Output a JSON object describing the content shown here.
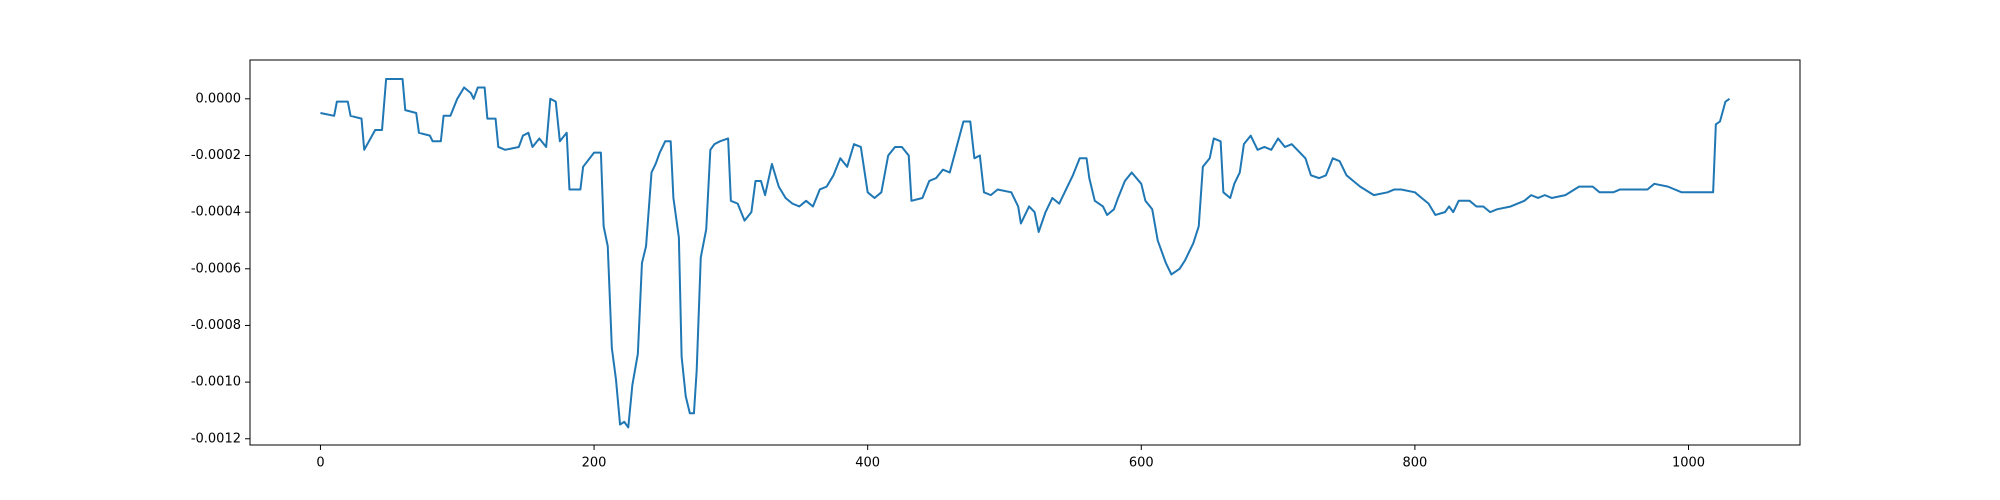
{
  "chart_data": {
    "type": "line",
    "color": "#1f77b4",
    "x": [
      0,
      10,
      12,
      20,
      22,
      30,
      32,
      40,
      45,
      48,
      55,
      60,
      62,
      70,
      72,
      80,
      82,
      88,
      90,
      95,
      100,
      105,
      110,
      112,
      115,
      120,
      122,
      128,
      130,
      135,
      145,
      148,
      152,
      155,
      160,
      165,
      168,
      172,
      175,
      180,
      182,
      190,
      192,
      200,
      205,
      207,
      210,
      213,
      216,
      219,
      222,
      225,
      228,
      232,
      235,
      238,
      242,
      245,
      248,
      252,
      256,
      258,
      262,
      264,
      267,
      270,
      273,
      275,
      278,
      282,
      285,
      288,
      292,
      298,
      300,
      305,
      310,
      315,
      318,
      322,
      325,
      330,
      335,
      340,
      345,
      350,
      355,
      360,
      365,
      370,
      375,
      380,
      385,
      390,
      395,
      400,
      405,
      410,
      415,
      420,
      425,
      430,
      432,
      440,
      445,
      450,
      455,
      460,
      465,
      470,
      475,
      478,
      482,
      485,
      490,
      495,
      505,
      510,
      512,
      518,
      522,
      525,
      530,
      535,
      540,
      545,
      550,
      555,
      560,
      562,
      566,
      572,
      575,
      580,
      583,
      588,
      593,
      600,
      603,
      608,
      612,
      618,
      622,
      628,
      632,
      638,
      642,
      645,
      650,
      653,
      658,
      660,
      665,
      668,
      672,
      675,
      680,
      685,
      690,
      695,
      700,
      705,
      710,
      720,
      724,
      730,
      735,
      740,
      745,
      750,
      755,
      760,
      770,
      780,
      785,
      790,
      800,
      805,
      810,
      815,
      822,
      825,
      828,
      832,
      840,
      845,
      850,
      855,
      860,
      870,
      880,
      885,
      890,
      895,
      900,
      910,
      920,
      925,
      930,
      935,
      945,
      950,
      960,
      970,
      975,
      985,
      995,
      1018,
      1020,
      1023,
      1027,
      1030
    ],
    "values": [
      -5e-05,
      -6e-05,
      -1e-05,
      -1e-05,
      -6e-05,
      -7e-05,
      -0.00018,
      -0.00011,
      -0.00011,
      7e-05,
      7e-05,
      7e-05,
      -4e-05,
      -5e-05,
      -0.00012,
      -0.00013,
      -0.00015,
      -0.00015,
      -6e-05,
      -6e-05,
      0.0,
      4e-05,
      2e-05,
      0.0,
      4e-05,
      4e-05,
      -7e-05,
      -7e-05,
      -0.00017,
      -0.00018,
      -0.00017,
      -0.00013,
      -0.00012,
      -0.00017,
      -0.00014,
      -0.00017,
      0.0,
      -1e-05,
      -0.00015,
      -0.00012,
      -0.00032,
      -0.00032,
      -0.00024,
      -0.00019,
      -0.00019,
      -0.00045,
      -0.00052,
      -0.00088,
      -0.00099,
      -0.00115,
      -0.00114,
      -0.00116,
      -0.00101,
      -0.0009,
      -0.00058,
      -0.00052,
      -0.00026,
      -0.00023,
      -0.00019,
      -0.00015,
      -0.00015,
      -0.00035,
      -0.00049,
      -0.00091,
      -0.00105,
      -0.00111,
      -0.00111,
      -0.00096,
      -0.00056,
      -0.00046,
      -0.00018,
      -0.00016,
      -0.00015,
      -0.00014,
      -0.00036,
      -0.00037,
      -0.00043,
      -0.0004,
      -0.00029,
      -0.00029,
      -0.00034,
      -0.00023,
      -0.00031,
      -0.00035,
      -0.00037,
      -0.00038,
      -0.00036,
      -0.00038,
      -0.00032,
      -0.00031,
      -0.00027,
      -0.00021,
      -0.00024,
      -0.00016,
      -0.00017,
      -0.00033,
      -0.00035,
      -0.00033,
      -0.0002,
      -0.00017,
      -0.00017,
      -0.0002,
      -0.00036,
      -0.00035,
      -0.00029,
      -0.00028,
      -0.00025,
      -0.00026,
      -0.00017,
      -8e-05,
      -8e-05,
      -0.00021,
      -0.0002,
      -0.00033,
      -0.00034,
      -0.00032,
      -0.00033,
      -0.00038,
      -0.00044,
      -0.00038,
      -0.0004,
      -0.00047,
      -0.0004,
      -0.00035,
      -0.00037,
      -0.00032,
      -0.00027,
      -0.00021,
      -0.00021,
      -0.00028,
      -0.00036,
      -0.00038,
      -0.00041,
      -0.00039,
      -0.00035,
      -0.00029,
      -0.00026,
      -0.0003,
      -0.00036,
      -0.00039,
      -0.0005,
      -0.00058,
      -0.00062,
      -0.0006,
      -0.00057,
      -0.00051,
      -0.00045,
      -0.00024,
      -0.00021,
      -0.00014,
      -0.00015,
      -0.00033,
      -0.00035,
      -0.0003,
      -0.00026,
      -0.00016,
      -0.00013,
      -0.00018,
      -0.00017,
      -0.00018,
      -0.00014,
      -0.00017,
      -0.00016,
      -0.00021,
      -0.00027,
      -0.00028,
      -0.00027,
      -0.00021,
      -0.00022,
      -0.00027,
      -0.00029,
      -0.00031,
      -0.00034,
      -0.00033,
      -0.00032,
      -0.00032,
      -0.00033,
      -0.00035,
      -0.00037,
      -0.00041,
      -0.0004,
      -0.00038,
      -0.0004,
      -0.00036,
      -0.00036,
      -0.00038,
      -0.00038,
      -0.0004,
      -0.00039,
      -0.00038,
      -0.00036,
      -0.00034,
      -0.00035,
      -0.00034,
      -0.00035,
      -0.00034,
      -0.00031,
      -0.00031,
      -0.00031,
      -0.00033,
      -0.00033,
      -0.00032,
      -0.00032,
      -0.00032,
      -0.0003,
      -0.00031,
      -0.00033,
      -0.00033,
      -9e-05,
      -8e-05,
      -1e-05,
      0.0
    ],
    "xlim": [
      -51.5,
      1081.5
    ],
    "xticks": [
      0,
      200,
      400,
      600,
      800,
      1000
    ],
    "ylim": [
      -0.001222,
      0.000137
    ],
    "yticks": [
      {
        "value": 0,
        "label": "0.0000"
      },
      {
        "value": -0.0002,
        "label": "-0.0002"
      },
      {
        "value": -0.0004,
        "label": "-0.0004"
      },
      {
        "value": -0.0006,
        "label": "-0.0006"
      },
      {
        "value": -0.0008,
        "label": "-0.0008"
      },
      {
        "value": -0.001,
        "label": "-0.0010"
      },
      {
        "value": -0.0012,
        "label": "-0.0012"
      }
    ]
  }
}
